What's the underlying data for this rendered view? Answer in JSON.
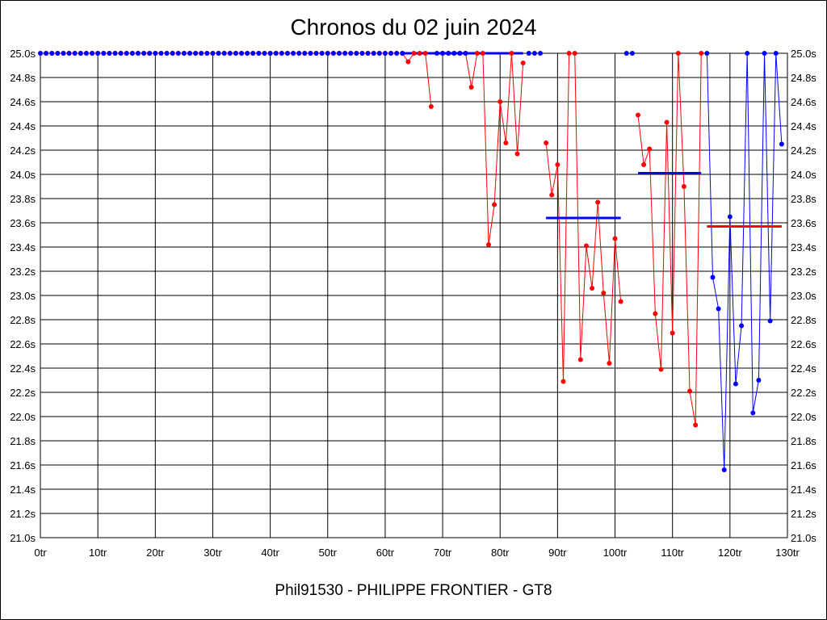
{
  "chart_data": {
    "type": "line",
    "title": "Chronos du 02 juin 2024",
    "footer": "Phil91530 - PHILIPPE FRONTIER - GT8",
    "xlabel": "",
    "ylabel": "",
    "xlim": [
      0,
      130
    ],
    "ylim": [
      21.0,
      25.0
    ],
    "x_ticks": [
      0,
      10,
      20,
      30,
      40,
      50,
      60,
      70,
      80,
      90,
      100,
      110,
      120,
      130
    ],
    "x_tick_labels": [
      "0tr",
      "10tr",
      "20tr",
      "30tr",
      "40tr",
      "50tr",
      "60tr",
      "70tr",
      "80tr",
      "90tr",
      "100tr",
      "110tr",
      "120tr",
      "130tr"
    ],
    "y_ticks": [
      21.0,
      21.2,
      21.4,
      21.6,
      21.8,
      22.0,
      22.2,
      22.4,
      22.6,
      22.8,
      23.0,
      23.2,
      23.4,
      23.6,
      23.8,
      24.0,
      24.2,
      24.4,
      24.6,
      24.8,
      25.0
    ],
    "y_tick_labels": [
      "21.0s",
      "21.2s",
      "21.4s",
      "21.6s",
      "21.8s",
      "22.0s",
      "22.2s",
      "22.4s",
      "22.6s",
      "22.8s",
      "23.0s",
      "23.2s",
      "23.4s",
      "23.6s",
      "23.8s",
      "24.0s",
      "24.2s",
      "24.4s",
      "24.6s",
      "24.8s",
      "25.0s"
    ],
    "grid": true,
    "colors": {
      "red": "#ff0000",
      "blue": "#0000ff",
      "grid": "#000000"
    },
    "series": [
      {
        "color": "#ff0000",
        "x": [
          1,
          2,
          3,
          4,
          5,
          6,
          7,
          8,
          9,
          10,
          11,
          12,
          13,
          14,
          15,
          16,
          17,
          18,
          19,
          20,
          21,
          22,
          23,
          24,
          25,
          26,
          27,
          28,
          29,
          30,
          31,
          32,
          33,
          34,
          35,
          36,
          37,
          38,
          39,
          40,
          41,
          42,
          43,
          44,
          45,
          46,
          47,
          48,
          49,
          50,
          51,
          52,
          53,
          54,
          55,
          56,
          57,
          58,
          59,
          60,
          61,
          62,
          63,
          64,
          65,
          66,
          67,
          68,
          69,
          70,
          71,
          72,
          73,
          74,
          75,
          76,
          77,
          78,
          79,
          80,
          81,
          82,
          83,
          84
        ],
        "y": [
          25.0,
          25.0,
          25.0,
          25.0,
          25.0,
          25.0,
          25.0,
          25.0,
          25.0,
          25.0,
          25.0,
          25.0,
          25.0,
          25.0,
          25.0,
          25.0,
          25.0,
          25.0,
          25.0,
          25.0,
          25.0,
          25.0,
          25.0,
          25.0,
          25.0,
          25.0,
          25.0,
          25.0,
          25.0,
          25.0,
          25.0,
          25.0,
          25.0,
          25.0,
          25.0,
          25.0,
          25.0,
          25.0,
          25.0,
          25.0,
          25.0,
          25.0,
          25.0,
          25.0,
          25.0,
          25.0,
          25.0,
          25.0,
          25.0,
          25.0,
          25.0,
          25.0,
          25.0,
          25.0,
          25.0,
          25.0,
          25.0,
          25.0,
          25.0,
          25.0,
          25.0,
          25.0,
          25.0,
          24.93,
          25.0,
          25.0,
          25.0,
          24.56,
          null,
          25.0,
          25.0,
          25.0,
          25.0,
          25.0,
          24.72,
          25.0,
          25.0,
          23.42,
          23.75,
          24.6,
          24.26,
          25.0,
          24.17,
          24.92
        ]
      },
      {
        "color": "#ff0000",
        "x": [
          88,
          89,
          90,
          91,
          92,
          93,
          94,
          95,
          96,
          97,
          98,
          99,
          100,
          101
        ],
        "y": [
          24.26,
          23.83,
          24.08,
          22.29,
          25.0,
          25.0,
          22.47,
          23.41,
          23.06,
          23.77,
          23.02,
          22.44,
          23.47,
          22.95
        ]
      },
      {
        "color": "#ff0000",
        "x": [
          104,
          105,
          106,
          107,
          108,
          109,
          110,
          111,
          112,
          113,
          114,
          115
        ],
        "y": [
          24.49,
          24.08,
          24.21,
          22.85,
          22.39,
          24.43,
          22.69,
          25.0,
          23.9,
          22.21,
          21.93,
          25.0
        ]
      },
      {
        "color": "#0000ff",
        "x": [
          116,
          117,
          118,
          119,
          120,
          121,
          122,
          123,
          124,
          125,
          126,
          127,
          128,
          129
        ],
        "y": [
          25.0,
          23.15,
          22.89,
          21.56,
          23.65,
          22.27,
          22.75,
          25.0,
          22.03,
          22.3,
          25.0,
          22.79,
          25.0,
          24.25
        ]
      },
      {
        "color": "#0000ff",
        "points_only": true,
        "x": [
          0,
          1,
          2,
          3,
          4,
          5,
          6,
          7,
          8,
          9,
          10,
          11,
          12,
          13,
          14,
          15,
          16,
          17,
          18,
          19,
          20,
          21,
          22,
          23,
          24,
          25,
          26,
          27,
          28,
          29,
          30,
          31,
          32,
          33,
          34,
          35,
          36,
          37,
          38,
          39,
          40,
          41,
          42,
          43,
          44,
          45,
          46,
          47,
          48,
          49,
          50,
          51,
          52,
          53,
          54,
          55,
          56,
          57,
          58,
          59,
          60,
          61,
          62,
          63,
          69,
          70,
          71,
          72,
          73,
          74,
          85,
          86,
          87,
          102,
          103
        ],
        "y": [
          25.0,
          25.0,
          25.0,
          25.0,
          25.0,
          25.0,
          25.0,
          25.0,
          25.0,
          25.0,
          25.0,
          25.0,
          25.0,
          25.0,
          25.0,
          25.0,
          25.0,
          25.0,
          25.0,
          25.0,
          25.0,
          25.0,
          25.0,
          25.0,
          25.0,
          25.0,
          25.0,
          25.0,
          25.0,
          25.0,
          25.0,
          25.0,
          25.0,
          25.0,
          25.0,
          25.0,
          25.0,
          25.0,
          25.0,
          25.0,
          25.0,
          25.0,
          25.0,
          25.0,
          25.0,
          25.0,
          25.0,
          25.0,
          25.0,
          25.0,
          25.0,
          25.0,
          25.0,
          25.0,
          25.0,
          25.0,
          25.0,
          25.0,
          25.0,
          25.0,
          25.0,
          25.0,
          25.0,
          25.0,
          25.0,
          25.0,
          25.0,
          25.0,
          25.0,
          25.0,
          25.0,
          25.0,
          25.0,
          25.0,
          25.0
        ]
      }
    ],
    "averages": [
      {
        "color": "#0000ff",
        "x_from": 63,
        "x_to": 84,
        "y": 25.0
      },
      {
        "color": "#0000ff",
        "x_from": 88,
        "x_to": 101,
        "y": 23.64
      },
      {
        "color": "#0000ff",
        "x_from": 104,
        "x_to": 115,
        "y": 24.01
      },
      {
        "color": "#ff0000",
        "x_from": 116,
        "x_to": 129,
        "y": 23.57
      }
    ]
  }
}
